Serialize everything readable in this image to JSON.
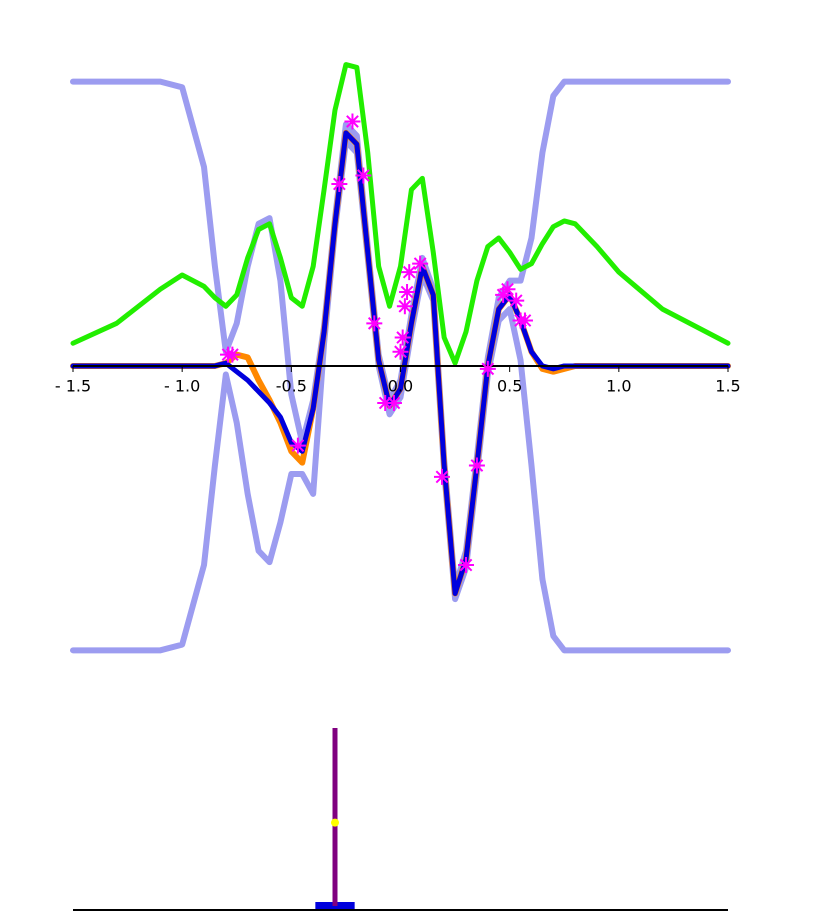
{
  "chart_data": [
    {
      "type": "line",
      "x": [
        -1.5,
        -1.3,
        -1.1,
        -1.0,
        -0.9,
        -0.85,
        -0.8,
        -0.75,
        -0.7,
        -0.65,
        -0.6,
        -0.55,
        -0.5,
        -0.45,
        -0.4,
        -0.35,
        -0.3,
        -0.25,
        -0.2,
        -0.15,
        -0.1,
        -0.05,
        0,
        0.05,
        0.1,
        0.15,
        0.2,
        0.25,
        0.3,
        0.35,
        0.4,
        0.45,
        0.5,
        0.55,
        0.6,
        0.65,
        0.7,
        0.75,
        0.8,
        0.9,
        1.0,
        1.2,
        1.5
      ],
      "xlim": [
        -1.5,
        1.5
      ],
      "ylim": [
        -1.02,
        1.15
      ],
      "xticks": [
        {
          "value": -1.5,
          "label": "- 1.5"
        },
        {
          "value": -1.0,
          "label": "- 1.0"
        },
        -0.5,
        {
          "value": 0,
          "label": "0.0"
        },
        0.5,
        {
          "value": 1.0,
          "label": "1.0"
        },
        1.5
      ],
      "series": [
        {
          "color": "#9c9cf0",
          "width": 6,
          "values": [
            1,
            1,
            1,
            0.98,
            0.7,
            0.35,
            0.05,
            0.15,
            0.35,
            0.5,
            0.52,
            0.3,
            -0.1,
            -0.27,
            -0.12,
            0.14,
            0.52,
            0.85,
            0.81,
            0.42,
            0.04,
            -0.12,
            -0.05,
            0.18,
            0.38,
            0.27,
            -0.33,
            -0.78,
            -0.65,
            -0.32,
            0.03,
            0.24,
            0.3,
            0.3,
            0.45,
            0.75,
            0.95,
            1,
            1,
            1,
            1,
            1,
            1
          ]
        },
        {
          "color": "#9c9cf0",
          "width": 6,
          "values": [
            -1,
            -1,
            -1,
            -0.98,
            -0.7,
            -0.35,
            -0.03,
            -0.2,
            -0.45,
            -0.65,
            -0.69,
            -0.55,
            -0.38,
            -0.38,
            -0.45,
            0.08,
            0.48,
            0.79,
            0.75,
            0.38,
            0,
            -0.17,
            -0.11,
            0.12,
            0.32,
            0.23,
            -0.37,
            -0.82,
            -0.71,
            -0.38,
            -0.03,
            0.16,
            0.2,
            0.02,
            -0.35,
            -0.75,
            -0.95,
            -1,
            -1,
            -1,
            -1,
            -1,
            -1
          ]
        },
        {
          "color": "#22ee00",
          "width": 5,
          "values": [
            0.08,
            0.15,
            0.27,
            0.32,
            0.28,
            0.24,
            0.21,
            0.25,
            0.38,
            0.48,
            0.5,
            0.38,
            0.24,
            0.21,
            0.35,
            0.62,
            0.9,
            1.06,
            1.05,
            0.75,
            0.35,
            0.21,
            0.35,
            0.62,
            0.66,
            0.4,
            0.1,
            0.01,
            0.12,
            0.3,
            0.42,
            0.45,
            0.4,
            0.34,
            0.36,
            0.43,
            0.49,
            0.51,
            0.5,
            0.42,
            0.33,
            0.2,
            0.08
          ]
        },
        {
          "color": "#ff8800",
          "width": 6,
          "values": [
            0,
            0,
            0,
            0,
            0,
            0,
            0.01,
            0.04,
            0.03,
            -0.05,
            -0.12,
            -0.2,
            -0.3,
            -0.34,
            -0.15,
            0.12,
            0.5,
            0.82,
            0.78,
            0.4,
            0.02,
            -0.14,
            -0.08,
            0.15,
            0.35,
            0.25,
            -0.35,
            -0.8,
            -0.68,
            -0.35,
            0,
            0.2,
            0.25,
            0.16,
            0.05,
            -0.01,
            -0.02,
            -0.01,
            0,
            0,
            0,
            0,
            0
          ]
        },
        {
          "color": "#0000dd",
          "width": 5,
          "values": [
            0,
            0,
            0,
            0,
            0,
            0,
            0.01,
            -0.02,
            -0.05,
            -0.09,
            -0.13,
            -0.18,
            -0.27,
            -0.3,
            -0.15,
            0.12,
            0.5,
            0.82,
            0.78,
            0.4,
            0.02,
            -0.14,
            -0.08,
            0.15,
            0.35,
            0.25,
            -0.35,
            -0.8,
            -0.68,
            -0.35,
            0,
            0.2,
            0.25,
            0.16,
            0.05,
            0,
            -0.01,
            0,
            0,
            0,
            0,
            0,
            0
          ]
        }
      ],
      "scatter": {
        "color": "#ff00ff",
        "x": [
          -0.79,
          -0.77,
          -0.47,
          -0.28,
          -0.22,
          -0.17,
          -0.12,
          -0.07,
          -0.03,
          0,
          0.01,
          0.02,
          0.03,
          0.04,
          0.09,
          0.19,
          0.3,
          0.35,
          0.4,
          0.47,
          0.49,
          0.53,
          0.55,
          0.57
        ],
        "values": [
          0.04,
          0.04,
          -0.28,
          0.64,
          0.86,
          0.67,
          0.15,
          -0.13,
          -0.13,
          0.05,
          0.1,
          0.21,
          0.26,
          0.33,
          0.36,
          -0.39,
          -0.7,
          -0.35,
          -0.01,
          0.25,
          0.27,
          0.23,
          0.16,
          0.16
        ]
      }
    },
    {
      "type": "stem",
      "xlim": [
        -1.5,
        1.5
      ],
      "ylim": [
        0,
        1
      ],
      "x": [
        -0.3
      ],
      "values": [
        1
      ],
      "color": "#800080",
      "marker": {
        "values": [
          0.48
        ],
        "color": "#ffff00"
      },
      "base": {
        "x": [
          -0.39,
          -0.21
        ],
        "color": "#0000dd"
      }
    }
  ]
}
